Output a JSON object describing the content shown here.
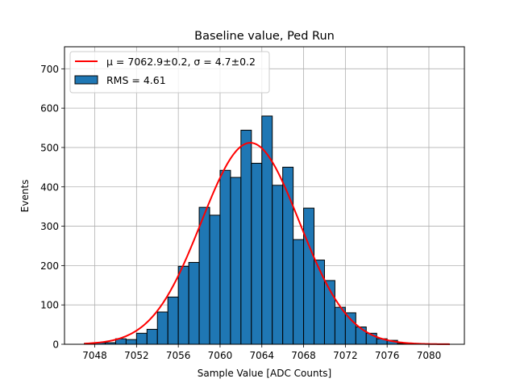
{
  "chart_data": {
    "type": "bar",
    "title": "Baseline value, Ped Run",
    "xlabel": "Sample Value [ADC Counts]",
    "ylabel": "Events",
    "xlim": [
      7045.1,
      7083.4
    ],
    "ylim": [
      0,
      756
    ],
    "xticks": [
      7048,
      7052,
      7056,
      7060,
      7064,
      7068,
      7072,
      7076,
      7080
    ],
    "yticks": [
      0,
      100,
      200,
      300,
      400,
      500,
      600,
      700
    ],
    "grid": true,
    "bar_color": "#1f77b4",
    "fit_color": "#ff0000",
    "legend_position": "top-left",
    "legend": {
      "fit_label": "μ = 7062.9±0.2, σ = 4.7±0.2",
      "hist_label": "RMS = 4.61"
    },
    "histogram": {
      "bin_edges": [
        7047,
        7048,
        7049,
        7050,
        7051,
        7052,
        7053,
        7054,
        7055,
        7056,
        7057,
        7058,
        7059,
        7060,
        7061,
        7062,
        7063,
        7064,
        7065,
        7066,
        7067,
        7068,
        7069,
        7070,
        7071,
        7072,
        7073,
        7074,
        7075,
        7076,
        7077,
        7078,
        7079,
        7080,
        7081,
        7082
      ],
      "counts": [
        2,
        4,
        4,
        14,
        12,
        28,
        38,
        82,
        120,
        198,
        208,
        348,
        328,
        442,
        424,
        544,
        460,
        580,
        404,
        450,
        266,
        346,
        214,
        162,
        94,
        80,
        44,
        28,
        14,
        10,
        2,
        1,
        0,
        0,
        0
      ]
    },
    "fit": {
      "function": "gaussian",
      "mu": 7062.9,
      "sigma": 4.7,
      "amplitude": 512,
      "x_range": [
        7047,
        7082
      ]
    }
  }
}
